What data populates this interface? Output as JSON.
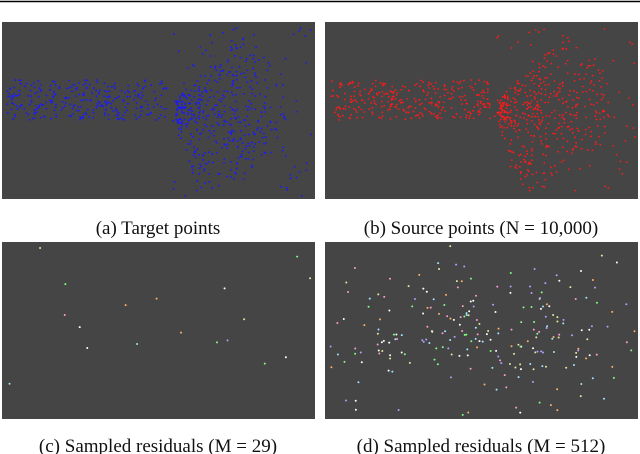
{
  "panels": [
    {
      "caption": "(a) Target points"
    },
    {
      "caption": "(b) Source points (N = 10,000)"
    },
    {
      "caption": "(c) Sampled residuals (M = 29)"
    },
    {
      "caption": "(d) Sampled residuals (M = 512)"
    }
  ]
}
